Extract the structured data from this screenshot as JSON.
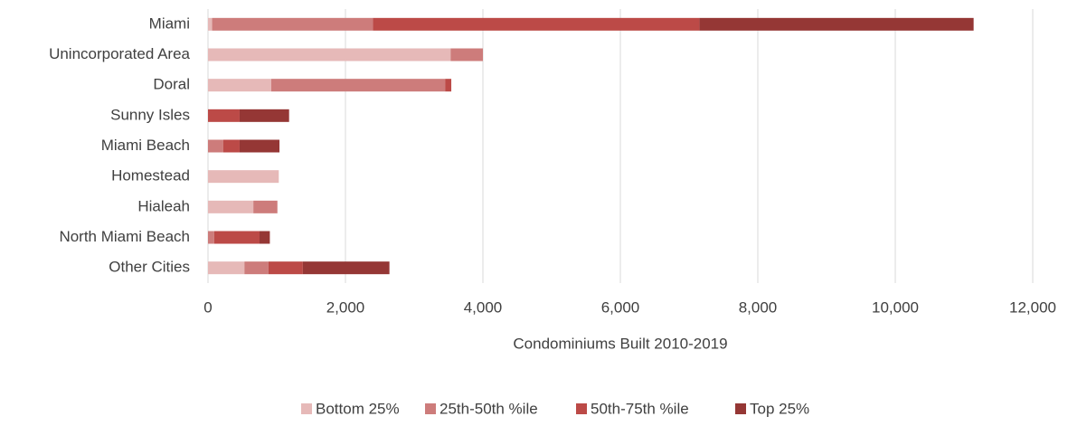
{
  "chart_data": {
    "type": "stacked-barh",
    "categories": [
      "Miami",
      "Unincorporated Area",
      "Doral",
      "Sunny Isles",
      "Miami Beach",
      "Homestead",
      "Hialeah",
      "North Miami Beach",
      "Other Cities"
    ],
    "series": [
      {
        "name": "Bottom 25%",
        "color": "#e6b9b8",
        "values": [
          60,
          3530,
          920,
          0,
          0,
          1030,
          660,
          0,
          530
        ]
      },
      {
        "name": "25th-50th %ile",
        "color": "#cd7c7b",
        "values": [
          2340,
          470,
          2530,
          0,
          220,
          0,
          350,
          90,
          350
        ]
      },
      {
        "name": "50th-75th %ile",
        "color": "#bc4a47",
        "values": [
          4750,
          0,
          90,
          460,
          240,
          0,
          0,
          660,
          500
        ]
      },
      {
        "name": "Top 25%",
        "color": "#953735",
        "values": [
          3990,
          0,
          0,
          720,
          580,
          0,
          0,
          150,
          1260
        ]
      }
    ],
    "xlabel": "Condominiums Built 2010-2019",
    "xlim": [
      0,
      12000
    ],
    "xticks": [
      0,
      {
        "value": 2000,
        "label": "2,000"
      },
      {
        "value": 4000,
        "label": "4,000"
      },
      {
        "value": 6000,
        "label": "6,000"
      },
      {
        "value": 8000,
        "label": "8,000"
      },
      {
        "value": 10000,
        "label": "10,000"
      },
      {
        "value": 12000,
        "label": "12,000"
      }
    ],
    "grid": true,
    "legend": "bottom"
  }
}
